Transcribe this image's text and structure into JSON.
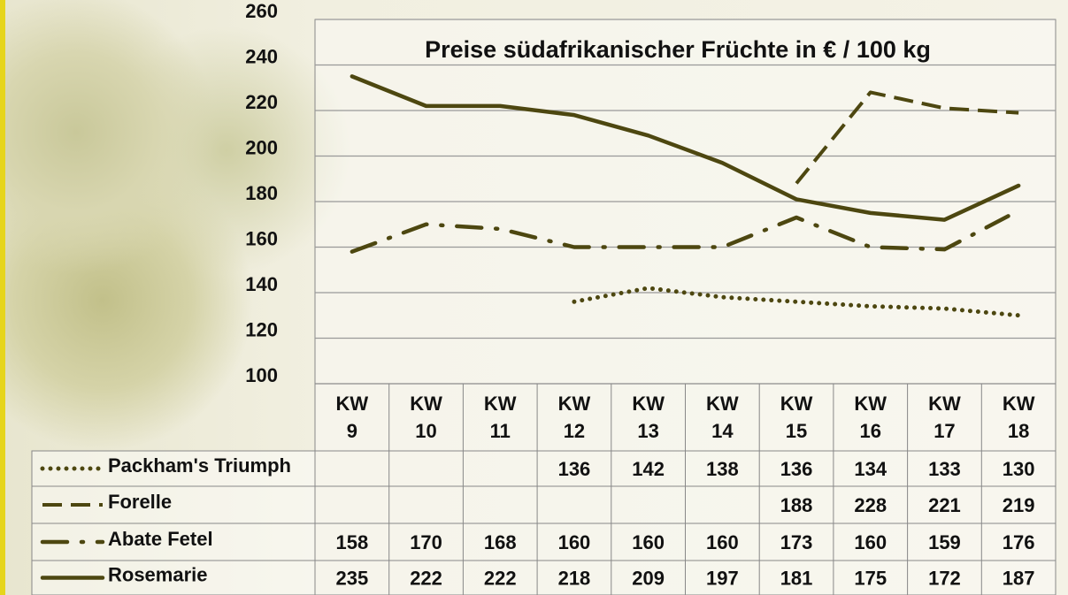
{
  "chart_data": {
    "type": "line",
    "title": "Preise südafrikanischer Früchte in € / 100 kg",
    "categories": [
      "KW 9",
      "KW 10",
      "KW 11",
      "KW 12",
      "KW 13",
      "KW 14",
      "KW 15",
      "KW 16",
      "KW 17",
      "KW 18"
    ],
    "series": [
      {
        "name": "Packham's Triumph",
        "color": "#4d4710",
        "line_style": "dotted",
        "values": [
          null,
          null,
          null,
          136,
          142,
          138,
          136,
          134,
          133,
          130
        ]
      },
      {
        "name": "Forelle",
        "color": "#4d4710",
        "line_style": "dashed",
        "values": [
          null,
          null,
          null,
          null,
          null,
          null,
          188,
          228,
          221,
          219
        ]
      },
      {
        "name": "Abate Fetel",
        "color": "#4d4710",
        "line_style": "dashdot",
        "values": [
          158,
          170,
          168,
          160,
          160,
          160,
          173,
          160,
          159,
          176
        ]
      },
      {
        "name": "Rosemarie",
        "color": "#4d4710",
        "line_style": "solid",
        "values": [
          235,
          222,
          222,
          218,
          209,
          197,
          181,
          175,
          172,
          187
        ]
      }
    ],
    "ylim": [
      100,
      260
    ],
    "yticks": [
      100,
      120,
      140,
      160,
      180,
      200,
      220,
      240,
      260
    ],
    "grid": true
  }
}
